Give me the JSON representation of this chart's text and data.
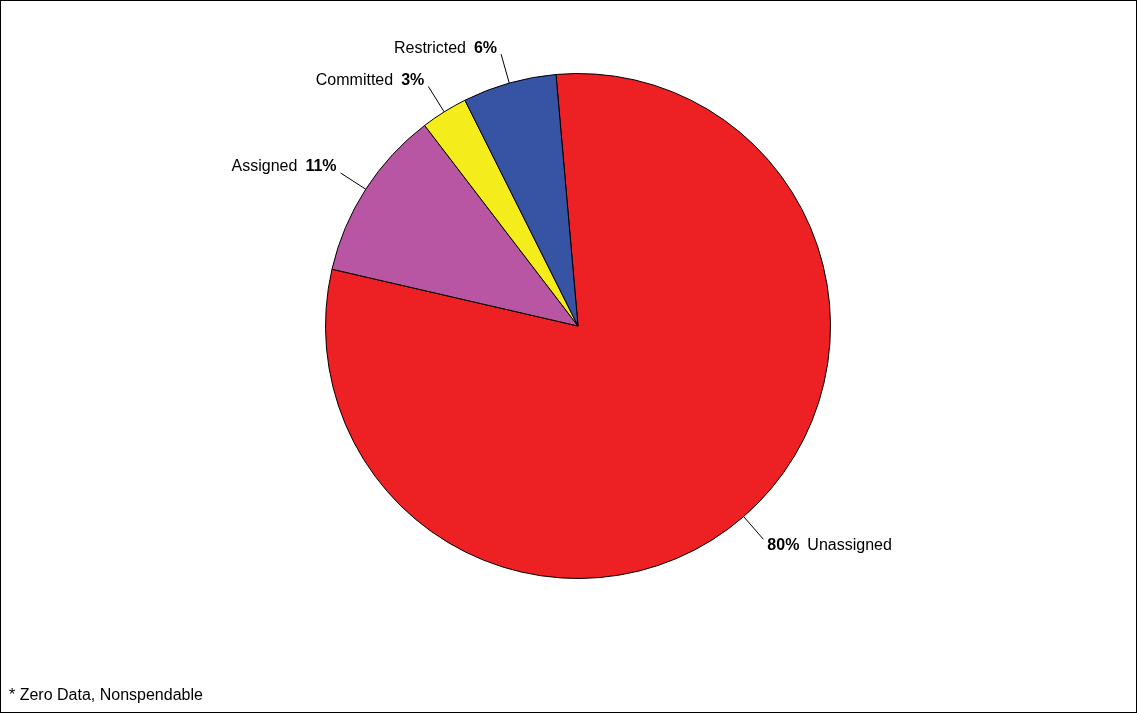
{
  "chart_data": {
    "type": "pie",
    "categories": [
      "Unassigned",
      "Assigned",
      "Committed",
      "Restricted"
    ],
    "values": [
      80,
      11,
      3,
      6
    ],
    "value_labels": [
      "80%",
      "11%",
      "3%",
      "6%"
    ],
    "colors": [
      "#ed2024",
      "#b856a3",
      "#f5ec1c",
      "#3753a4"
    ],
    "annotations": [
      "* Zero Data, Nonspendable"
    ]
  }
}
